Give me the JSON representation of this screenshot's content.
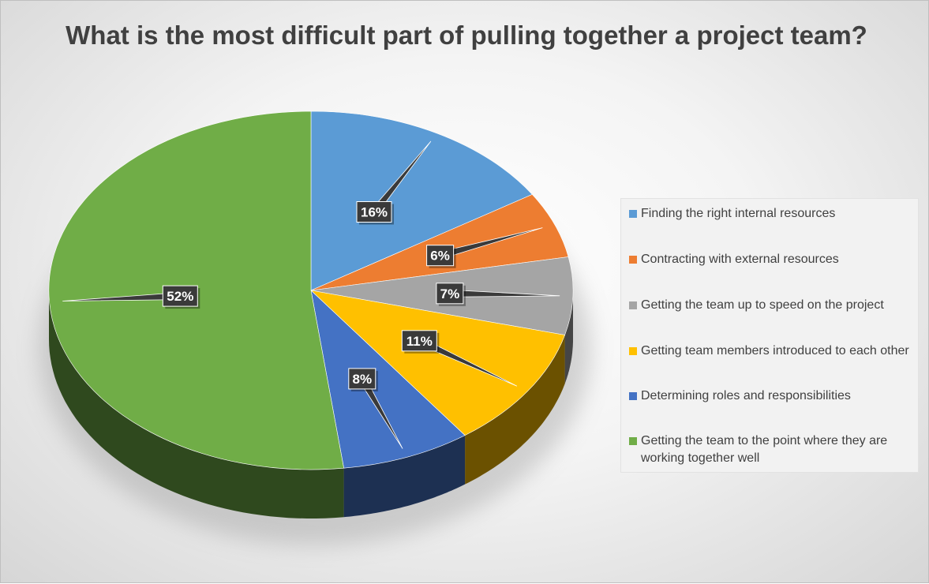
{
  "chart_data": {
    "type": "pie",
    "title": "What is the most difficult part of pulling together a project team?",
    "categories": [
      "Finding the right internal resources",
      "Contracting with external resources",
      "Getting the team up to speed on the project",
      "Getting team members introduced to each other",
      "Determining roles and responsibilities",
      "Getting the team to the point where they are working together well"
    ],
    "values": [
      16,
      6,
      7,
      11,
      8,
      52
    ],
    "data_labels": [
      "16%",
      "6%",
      "7%",
      "11%",
      "8%",
      "52%"
    ],
    "colors": [
      "#5b9bd5",
      "#ed7d31",
      "#a5a5a5",
      "#ffc000",
      "#4472c4",
      "#70ad47"
    ],
    "legend_position": "right",
    "style": "3d"
  }
}
